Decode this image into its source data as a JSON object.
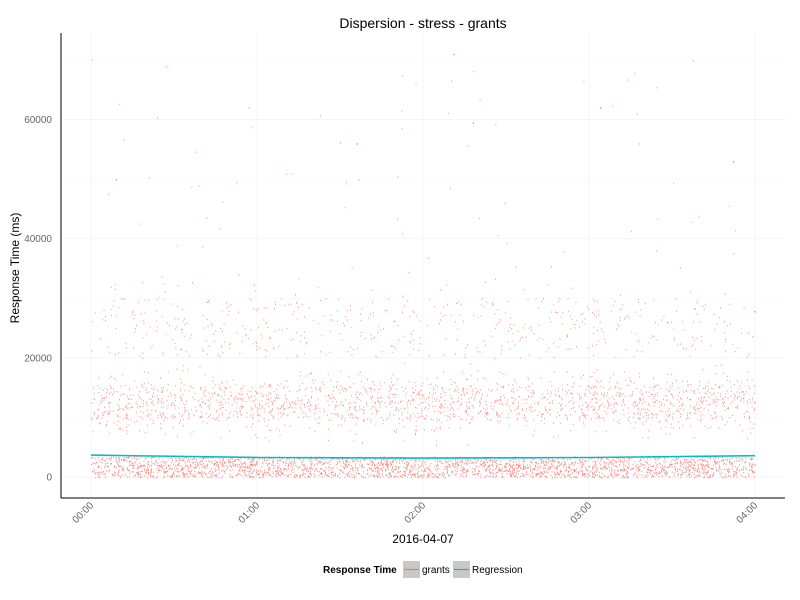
{
  "chart_data": {
    "type": "scatter",
    "title": "Dispersion - stress - grants",
    "xlabel": "2016-04-07",
    "ylabel": "Response Time (ms)",
    "x_ticks": [
      "00:00",
      "01:00",
      "02:00",
      "03:00",
      "04:00"
    ],
    "y_ticks": [
      "0",
      "20000",
      "40000",
      "60000"
    ],
    "x_range": [
      "00:00",
      "04:00"
    ],
    "ylim": [
      -3500,
      74500
    ],
    "grid": true,
    "legend_placement": "bottom",
    "legend": {
      "title": "Response Time",
      "items": [
        {
          "label": "grants",
          "color": "#F8766D",
          "kind": "points"
        },
        {
          "label": "Regression",
          "color": "#00BFC4",
          "kind": "line"
        }
      ]
    },
    "series": [
      {
        "name": "grants",
        "kind": "points",
        "color": "#F8766D",
        "description_bands": [
          {
            "y_min": 0,
            "y_max": 3500,
            "share": 0.5
          },
          {
            "y_min": 5000,
            "y_max": 20000,
            "share": 0.38
          },
          {
            "y_min": 20000,
            "y_max": 30000,
            "share": 0.1
          },
          {
            "y_min": 30000,
            "y_max": 71000,
            "share": 0.02
          }
        ],
        "notable_points": [
          {
            "x": "00:09",
            "y": 50000
          },
          {
            "x": "01:36",
            "y": 56000
          },
          {
            "x": "02:11",
            "y": 71000
          },
          {
            "x": "02:18",
            "y": 59500
          },
          {
            "x": "03:04",
            "y": 62000
          },
          {
            "x": "03:52",
            "y": 53000
          }
        ]
      },
      {
        "name": "Regression",
        "kind": "line",
        "color": "#00BFC4",
        "x": [
          "00:00",
          "01:00",
          "02:00",
          "03:00",
          "04:00"
        ],
        "y": [
          3700,
          3300,
          3200,
          3300,
          3600
        ]
      }
    ]
  }
}
